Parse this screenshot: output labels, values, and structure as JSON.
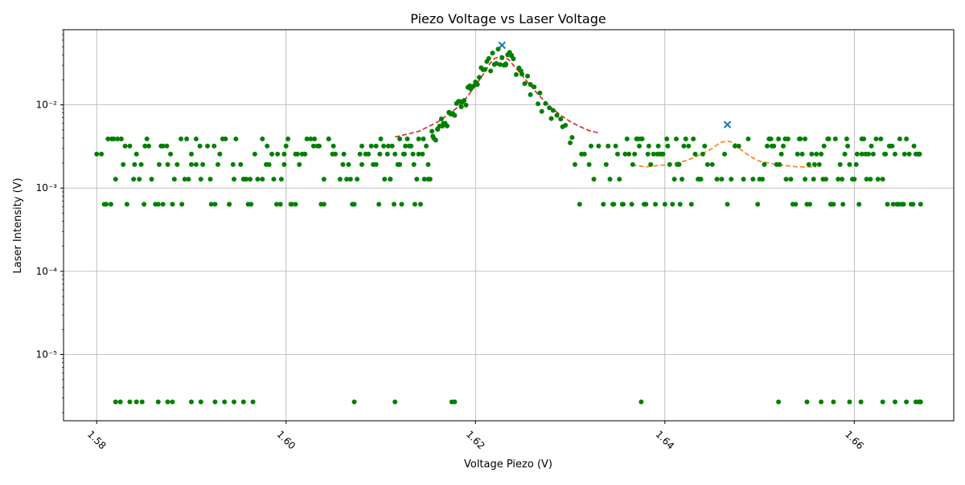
{
  "chart_data": {
    "type": "scatter",
    "title": "Piezo Voltage vs Laser Voltage",
    "xlabel": "Voltage Piezo (V)",
    "ylabel": "Laser Intensity (V)",
    "xlim": [
      1.5765,
      1.6705
    ],
    "ylim": [
      1.6e-06,
      0.08
    ],
    "yscale": "log",
    "grid": true,
    "x_ticks": [
      1.58,
      1.6,
      1.62,
      1.64,
      1.66
    ],
    "x_tick_labels": [
      "1.58",
      "1.60",
      "1.62",
      "1.64",
      "1.66"
    ],
    "y_ticks": [
      1e-05,
      0.0001,
      0.001,
      0.01
    ],
    "y_tick_labels": [
      "10⁻⁵",
      "10⁻⁴",
      "10⁻³",
      "10⁻²"
    ],
    "colors": {
      "scatter": "#008000",
      "fit_main": "#d62728",
      "fit_side": "#ff7f0e",
      "peak": "#1f77b4"
    },
    "peaks": [
      {
        "x": 1.6228,
        "y": 0.052
      },
      {
        "x": 1.6466,
        "y": 0.0058
      }
    ],
    "fit_main": {
      "x": [
        1.6115,
        1.614,
        1.616,
        1.618,
        1.619,
        1.62,
        1.621,
        1.6215,
        1.622,
        1.6228,
        1.6235,
        1.624,
        1.625,
        1.626,
        1.627,
        1.628,
        1.629,
        1.63,
        1.631,
        1.632,
        1.633
      ],
      "y": [
        0.0041,
        0.0048,
        0.0062,
        0.0091,
        0.012,
        0.017,
        0.025,
        0.031,
        0.036,
        0.039,
        0.035,
        0.03,
        0.022,
        0.016,
        0.012,
        0.0092,
        0.0075,
        0.0063,
        0.0055,
        0.0049,
        0.0046
      ]
    },
    "fit_side": {
      "x": [
        1.6365,
        1.638,
        1.64,
        1.642,
        1.643,
        1.644,
        1.645,
        1.6458,
        1.6466,
        1.6475,
        1.648,
        1.649,
        1.65,
        1.651,
        1.652,
        1.654,
        1.656
      ],
      "y": [
        0.0019,
        0.0018,
        0.0019,
        0.0021,
        0.0023,
        0.0026,
        0.003,
        0.0035,
        0.0037,
        0.0034,
        0.0029,
        0.0024,
        0.0021,
        0.002,
        0.0019,
        0.0018,
        0.0018
      ]
    },
    "scatter": {
      "x": [
        1.62,
        1.6202,
        1.6204,
        1.6206,
        1.6208,
        1.621,
        1.6212,
        1.6214,
        1.6216,
        1.6218,
        1.622,
        1.6222,
        1.6224,
        1.6226,
        1.6228,
        1.623,
        1.6232,
        1.6234,
        1.6236,
        1.6238,
        1.624,
        1.6243,
        1.6246,
        1.6249,
        1.6252,
        1.6255,
        1.6258,
        1.6262,
        1.6266,
        1.627,
        1.6274,
        1.6278,
        1.6282,
        1.6286,
        1.629,
        1.6295,
        1.63,
        1.6305,
        1.631,
        1.6315,
        1.632,
        1.6325,
        1.633,
        1.6185,
        1.618,
        1.6175,
        1.617,
        1.6165,
        1.616,
        1.6155,
        1.615,
        1.6145,
        1.614,
        1.6135,
        1.613,
        1.6125,
        1.612,
        1.6115,
        1.611,
        1.619,
        1.6195,
        1.6198,
        1.6188,
        1.6178,
        1.6168,
        1.6158,
        1.6148,
        1.6138,
        1.6232,
        1.6238,
        1.6248,
        1.6258,
        1.6268,
        1.628,
        1.6292,
        1.6302,
        1.6312,
        1.6322,
        1.6455,
        1.646,
        1.6463,
        1.6466,
        1.647,
        1.6474,
        1.6478,
        1.645,
        1.6445,
        1.644,
        1.6435,
        1.6483,
        1.6488,
        1.6493,
        1.58,
        1.581,
        1.5822,
        1.5835,
        1.5847,
        1.5858,
        1.587,
        1.5882,
        1.5893,
        1.5905,
        1.5917,
        1.5928,
        1.594,
        1.5952,
        1.5963,
        1.5975,
        1.5987,
        1.5998,
        1.601,
        1.6022,
        1.6033,
        1.6045,
        1.6057,
        1.6068,
        1.608,
        1.6092,
        1.6103,
        1.5805,
        1.5818,
        1.583,
        1.5842,
        1.5853,
        1.5866,
        1.5878,
        1.5889,
        1.59,
        1.5912,
        1.5924,
        1.5936,
        1.5947,
        1.5958,
        1.597,
        1.5982,
        1.5994,
        1.6005,
        1.6017,
        1.6029,
        1.604,
        1.6052,
        1.6064,
        1.6075,
        1.6087,
        1.6099,
        1.5812,
        1.5826,
        1.5839,
        1.5851,
        1.5862,
        1.5874,
        1.5885,
        1.5897,
        1.5909,
        1.5921,
        1.5933,
        1.5944,
        1.5956,
        1.5967,
        1.5979,
        1.5991,
        1.6002,
        1.6014,
        1.6026,
        1.6037,
        1.6049,
        1.6061,
        1.6072,
        1.6084,
        1.6095,
        1.6107,
        1.5808,
        1.5816,
        1.5828,
        1.584,
        1.5855,
        1.5868,
        1.588,
        1.5895,
        1.591,
        1.5925,
        1.5945,
        1.596,
        1.598,
        1.6,
        1.602,
        1.604,
        1.606,
        1.608,
        1.6095,
        1.582,
        1.5845,
        1.587,
        1.59,
        1.593,
        1.5955,
        1.5985,
        1.601,
        1.6045,
        1.607,
        1.61,
        1.599,
        1.5995,
        1.6006,
        1.6035,
        1.6066,
        1.609,
        1.5815,
        1.5832,
        1.585,
        1.5865,
        1.5875,
        1.589,
        1.5905,
        1.592,
        1.594,
        1.5962,
        1.5975,
        1.5998,
        1.6012,
        1.603,
        1.605,
        1.6078,
        1.6098,
        1.6104,
        1.6108,
        1.6112,
        1.6118,
        1.6122,
        1.6126,
        1.6132,
        1.6136,
        1.6142,
        1.6146,
        1.6152,
        1.6156,
        1.6162,
        1.6166,
        1.6172,
        1.6176,
        1.6182,
        1.6186,
        1.6114,
        1.6124,
        1.6134,
        1.6144,
        1.6154,
        1.6164,
        1.6174,
        1.6184,
        1.6194,
        1.611,
        1.6128,
        1.615,
        1.6172,
        1.6192,
        1.612,
        1.614,
        1.616,
        1.6335,
        1.634,
        1.6345,
        1.635,
        1.6355,
        1.636,
        1.6365,
        1.637,
        1.6375,
        1.638,
        1.6385,
        1.639,
        1.6395,
        1.64,
        1.6405,
        1.641,
        1.6415,
        1.642,
        1.6425,
        1.643,
        1.6338,
        1.6348,
        1.6358,
        1.6368,
        1.6378,
        1.6388,
        1.6398,
        1.6408,
        1.6418,
        1.6428,
        1.6438,
        1.6342,
        1.6352,
        1.6362,
        1.6372,
        1.6382,
        1.6392,
        1.6402,
        1.6412,
        1.6422,
        1.6432,
        1.6442,
        1.6346,
        1.6356,
        1.6366,
        1.6376,
        1.6396,
        1.6416,
        1.6436,
        1.6373,
        1.6383,
        1.6393,
        1.6403,
        1.6413,
        1.6498,
        1.6503,
        1.6508,
        1.6513,
        1.6518,
        1.6523,
        1.6528,
        1.6533,
        1.6538,
        1.6543,
        1.6548,
        1.6553,
        1.6558,
        1.6563,
        1.6568,
        1.6573,
        1.6578,
        1.6583,
        1.6588,
        1.6593,
        1.6598,
        1.6603,
        1.6608,
        1.6613,
        1.6618,
        1.6623,
        1.6628,
        1.6633,
        1.6638,
        1.6643,
        1.6648,
        1.6653,
        1.6658,
        1.6663,
        1.6668,
        1.667,
        1.65,
        1.651,
        1.652,
        1.653,
        1.654,
        1.655,
        1.656,
        1.657,
        1.658,
        1.659,
        1.66,
        1.661,
        1.662,
        1.663,
        1.664,
        1.665,
        1.666,
        1.6505,
        1.6515,
        1.6525,
        1.6535,
        1.6545,
        1.6555,
        1.6565,
        1.6575,
        1.6585,
        1.6595,
        1.6605,
        1.6615,
        1.6625,
        1.6635,
        1.6645,
        1.6655,
        1.6665,
        1.6512,
        1.6527,
        1.6542,
        1.6557,
        1.6572,
        1.6587,
        1.6602,
        1.6617,
        1.6632,
        1.6647,
        1.6662,
        1.6552,
        1.6567,
        1.6592,
        1.6612,
        1.6637,
        1.6652,
        1.6667,
        1.6521,
        1.6548,
        1.6576,
        1.6608,
        1.6641,
        1.6669,
        1.582,
        1.5825,
        1.5835,
        1.5842,
        1.5848,
        1.5865,
        1.5875,
        1.588,
        1.59,
        1.591,
        1.5925,
        1.5935,
        1.5945,
        1.5955,
        1.5965,
        1.6072,
        1.6115,
        1.6175,
        1.6178,
        1.6375,
        1.652,
        1.655,
        1.6565,
        1.6578,
        1.6595,
        1.6607,
        1.663,
        1.6643,
        1.6655,
        1.6665,
        1.6668,
        1.667
      ]
    }
  }
}
